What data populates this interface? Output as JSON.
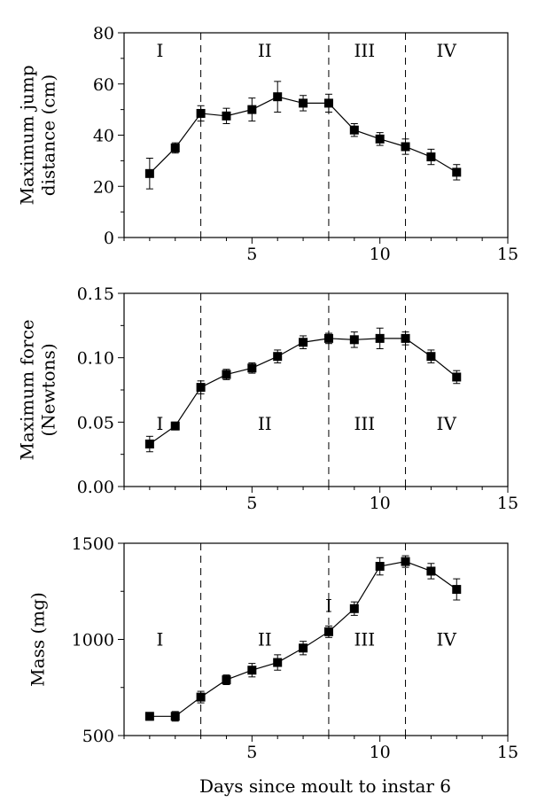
{
  "chart_data": [
    {
      "type": "line",
      "ylabel": [
        "Maximum jump",
        "distance (cm)"
      ],
      "xlim": [
        0,
        15
      ],
      "ylim": [
        0,
        80
      ],
      "xticks": [
        "5",
        "10",
        "15"
      ],
      "xtick_values": [
        5,
        10,
        15
      ],
      "yticks": [
        "0",
        "20",
        "40",
        "60",
        "80"
      ],
      "ytick_values": [
        0,
        20,
        40,
        60,
        80
      ],
      "phase_boundaries": [
        3,
        8,
        11
      ],
      "phases": [
        {
          "label": "I",
          "x": 1.4,
          "y": 73
        },
        {
          "label": "II",
          "x": 5.5,
          "y": 73
        },
        {
          "label": "III",
          "x": 9.4,
          "y": 73
        },
        {
          "label": "IV",
          "x": 12.6,
          "y": 73
        }
      ],
      "series": [
        {
          "x": [
            1,
            2,
            3,
            4,
            5,
            6,
            7,
            8,
            9,
            10,
            11,
            12,
            13
          ],
          "y": [
            25,
            35,
            48.5,
            47.5,
            50,
            55,
            52.5,
            52.5,
            42,
            38.5,
            35.5,
            31.5,
            25.5
          ],
          "err": [
            6,
            2,
            3,
            3,
            4.5,
            6,
            3,
            3.5,
            2.5,
            2.5,
            3,
            3,
            3
          ]
        }
      ]
    },
    {
      "type": "line",
      "ylabel": [
        "Maximum force",
        "(Newtons)"
      ],
      "xlim": [
        0,
        15
      ],
      "ylim": [
        0,
        0.15
      ],
      "xticks": [
        "5",
        "10",
        "15"
      ],
      "xtick_values": [
        5,
        10,
        15
      ],
      "yticks": [
        "0.00",
        "0.05",
        "0.10",
        "0.15"
      ],
      "ytick_values": [
        0,
        0.05,
        0.1,
        0.15
      ],
      "phase_boundaries": [
        3,
        8,
        11
      ],
      "phases": [
        {
          "label": "I",
          "x": 1.4,
          "y": 0.049
        },
        {
          "label": "II",
          "x": 5.5,
          "y": 0.049
        },
        {
          "label": "III",
          "x": 9.4,
          "y": 0.049
        },
        {
          "label": "IV",
          "x": 12.6,
          "y": 0.049
        }
      ],
      "series": [
        {
          "x": [
            1,
            2,
            3,
            4,
            5,
            6,
            7,
            8,
            9,
            10,
            11,
            12,
            13
          ],
          "y": [
            0.033,
            0.047,
            0.077,
            0.087,
            0.092,
            0.101,
            0.112,
            0.115,
            0.114,
            0.115,
            0.115,
            0.101,
            0.085
          ],
          "err": [
            0.006,
            0.003,
            0.005,
            0.004,
            0.004,
            0.005,
            0.005,
            0.004,
            0.006,
            0.008,
            0.005,
            0.005,
            0.005
          ]
        }
      ]
    },
    {
      "type": "line",
      "ylabel": [
        "Mass (mg)"
      ],
      "xlim": [
        0,
        15
      ],
      "ylim": [
        500,
        1500
      ],
      "xticks": [
        "5",
        "10",
        "15"
      ],
      "xtick_values": [
        5,
        10,
        15
      ],
      "yticks": [
        "500",
        "1000",
        "1500"
      ],
      "ytick_values": [
        500,
        1000,
        1500
      ],
      "xlabel": "Days since moult to instar 6",
      "phase_boundaries": [
        3,
        8,
        11
      ],
      "phases": [
        {
          "label": "I",
          "x": 1.4,
          "y": 1000
        },
        {
          "label": "II",
          "x": 5.5,
          "y": 1000
        },
        {
          "label": "III",
          "x": 9.4,
          "y": 1000
        },
        {
          "label": "IV",
          "x": 12.6,
          "y": 1000
        }
      ],
      "annotations": [
        {
          "label": "I",
          "x": 8,
          "y": 1175
        }
      ],
      "series": [
        {
          "x": [
            1,
            2,
            3,
            4,
            5,
            6,
            7,
            8,
            9,
            10,
            11,
            12,
            13
          ],
          "y": [
            600,
            600,
            700,
            790,
            840,
            880,
            955,
            1040,
            1160,
            1380,
            1405,
            1355,
            1260
          ],
          "err": [
            20,
            25,
            30,
            25,
            35,
            40,
            35,
            30,
            35,
            45,
            30,
            40,
            55
          ]
        }
      ]
    }
  ]
}
